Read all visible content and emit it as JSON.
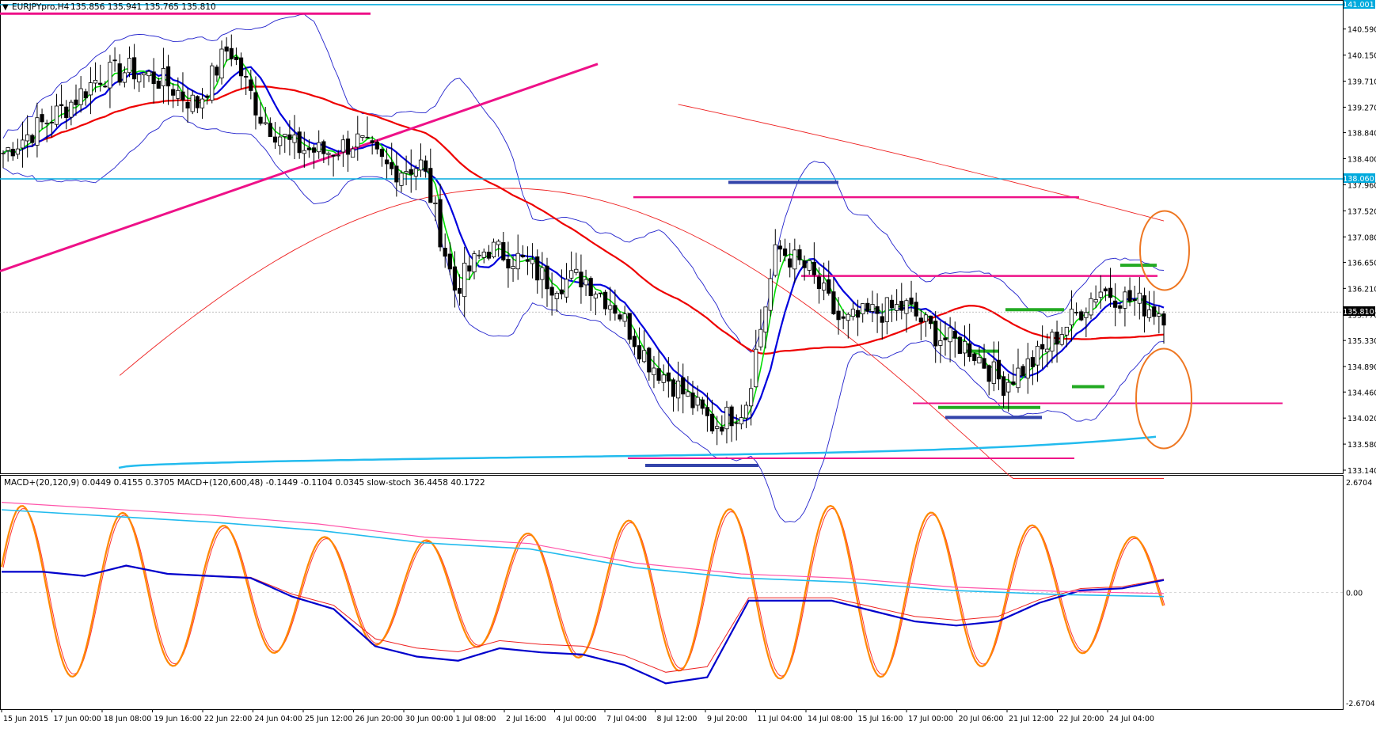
{
  "main_header": {
    "caret": "▼",
    "symbol_label": "EURJPYpro,H4",
    "ohlc": "135.856 135.941 135.765 135.810"
  },
  "indicator_header": {
    "text": "MACD+(20,120,9) 0.0449 0.4155 0.3705  MACD+(120,600,48) -0.1449 -0.1104 0.0345  slow-stoch 36.4458 40.1722"
  },
  "price_badges": {
    "top": "141.001",
    "level": "138.060",
    "current": "135.810"
  },
  "colors": {
    "bull_candle": "#ffffff",
    "bear_candle": "#000000",
    "ma_fast": "#00dd00",
    "ma_mid": "#0000dd",
    "ma_slow": "#ee0000",
    "bollinger": "#2222cc",
    "channel_line": "#ee1188",
    "horizontal_blue": "#00aadd",
    "stoch": "#ff8800",
    "macd_slow": "#ff55aa"
  },
  "chart_data": [
    {
      "type": "candlestick",
      "symbol": "EURJPYpro",
      "timeframe": "H4",
      "ylim": [
        133.14,
        141.0
      ],
      "y_ticks": [
        "140.590",
        "140.150",
        "139.710",
        "139.270",
        "138.840",
        "138.400",
        "137.960",
        "137.520",
        "137.080",
        "136.650",
        "136.210",
        "135.770",
        "135.330",
        "134.890",
        "134.460",
        "134.020",
        "133.580",
        "133.140"
      ],
      "x_ticks": [
        "15 Jun 2015",
        "17 Jun 00:00",
        "18 Jun 08:00",
        "19 Jun 16:00",
        "22 Jun 22:00",
        "24 Jun 04:00",
        "25 Jun 12:00",
        "26 Jun 20:00",
        "30 Jun 00:00",
        "1 Jul 08:00",
        "2 Jul 16:00",
        "4 Jul 00:00",
        "7 Jul 04:00",
        "8 Jul 12:00",
        "9 Jul 20:00",
        "11 Jul 04:00",
        "14 Jul 08:00",
        "15 Jul 16:00",
        "17 Jul 00:00",
        "20 Jul 06:00",
        "21 Jul 12:00",
        "22 Jul 20:00",
        "24 Jul 04:00"
      ],
      "close_anchors": [
        138.5,
        138.9,
        139.3,
        139.8,
        139.9,
        139.7,
        139.3,
        140.3,
        139.1,
        138.6,
        138.5,
        138.7,
        138.2,
        138.3,
        136.2,
        136.9,
        136.7,
        136.3,
        136.4,
        135.9,
        135.0,
        134.5,
        133.9,
        134.2,
        136.9,
        136.5,
        135.6,
        135.8,
        135.9,
        135.4,
        135.2,
        134.6,
        135.0,
        135.6,
        136.2,
        136.0,
        135.8
      ],
      "horizontal_levels": [
        141.001,
        138.06,
        135.81
      ]
    },
    {
      "type": "line",
      "series_labels": [
        "MACD+(20,120,9)",
        "MACD+(120,600,48)",
        "slow-stoch"
      ],
      "ylim": [
        -2.6704,
        2.6704
      ],
      "y_ticks": [
        "2.6704",
        "0.00",
        "-2.6704"
      ],
      "macd1_values": [
        0.5,
        0.5,
        0.4,
        0.65,
        0.45,
        0.4,
        0.35,
        -0.1,
        -0.4,
        -1.3,
        -1.55,
        -1.65,
        -1.35,
        -1.45,
        -1.5,
        -1.75,
        -2.2,
        -2.05,
        -0.2,
        -0.2,
        -0.2,
        -0.45,
        -0.7,
        -0.8,
        -0.7,
        -0.25,
        0.05,
        0.1,
        0.3
      ],
      "macd2_values": [
        2.0,
        1.85,
        1.7,
        1.5,
        1.2,
        1.05,
        0.6,
        0.35,
        0.25,
        0.05,
        -0.05,
        -0.1
      ]
    }
  ]
}
